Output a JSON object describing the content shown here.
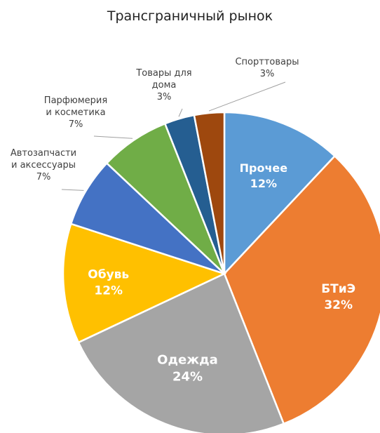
{
  "chart_data": {
    "type": "pie",
    "title": "Трансграничный рынок",
    "slices": [
      {
        "label": "Прочее",
        "value": 12,
        "value_label": "12%",
        "color": "#5B9BD5",
        "label_position": "inside"
      },
      {
        "label": "БТиЭ",
        "value": 32,
        "value_label": "32%",
        "color": "#ED7D31",
        "label_position": "inside"
      },
      {
        "label": "Одежда",
        "value": 24,
        "value_label": "24%",
        "color": "#A5A5A5",
        "label_position": "inside"
      },
      {
        "label": "Обувь",
        "value": 12,
        "value_label": "12%",
        "color": "#FFC000",
        "label_position": "inside"
      },
      {
        "label": "Автозапчасти и аксессуары",
        "lines": [
          "Автозапчасти",
          "и аксессуары"
        ],
        "value": 7,
        "value_label": "7%",
        "color": "#4472C4",
        "label_position": "outside"
      },
      {
        "label": "Парфюмерия и косметика",
        "lines": [
          "Парфюмерия",
          "и косметика"
        ],
        "value": 7,
        "value_label": "7%",
        "color": "#70AD47",
        "label_position": "outside"
      },
      {
        "label": "Товары для дома",
        "lines": [
          "Товары для",
          "дома"
        ],
        "value": 3,
        "value_label": "3%",
        "color": "#255E91",
        "label_position": "outside"
      },
      {
        "label": "Спорттовары",
        "lines": [
          "Спорттовары"
        ],
        "value": 3,
        "value_label": "3%",
        "color": "#9E480E",
        "label_position": "outside"
      }
    ]
  }
}
